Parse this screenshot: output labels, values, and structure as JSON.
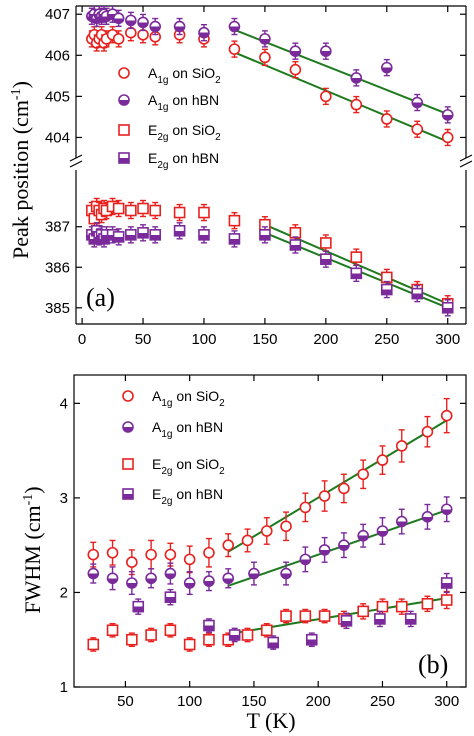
{
  "chart_data": [
    {
      "type": "scatter",
      "panel_label": "(a)",
      "ylabel": "Peak position (cm",
      "ylabel_sup": "-1",
      "ylabel_close": ")",
      "xlim": [
        -5,
        315
      ],
      "xticks": [
        "0",
        "50",
        "100",
        "150",
        "200",
        "250",
        "300"
      ],
      "y_axis_break": true,
      "upper_ylim": [
        403.5,
        407.2
      ],
      "upper_yticks": [
        "404",
        "405",
        "406",
        "407"
      ],
      "lower_ylim": [
        384.6,
        388.4
      ],
      "lower_yticks": [
        "385",
        "386",
        "387"
      ],
      "legend_position": "center-left",
      "series": [
        {
          "name": "A",
          "sub": "1g",
          "suffix": " on SiO",
          "sub2": "2",
          "marker": "circle",
          "fill": "open",
          "color": "#e8211f",
          "axis": "upper",
          "x": [
            8,
            10,
            12,
            14,
            16,
            18,
            20,
            25,
            30,
            40,
            50,
            60,
            80,
            100,
            125,
            150,
            175,
            200,
            225,
            250,
            275,
            300
          ],
          "y": [
            406.4,
            406.5,
            406.3,
            406.4,
            406.5,
            406.3,
            406.4,
            406.5,
            406.4,
            406.55,
            406.5,
            406.45,
            406.5,
            406.4,
            406.15,
            405.95,
            405.65,
            405.0,
            404.8,
            404.45,
            404.2,
            404.0
          ]
        },
        {
          "name": "A",
          "sub": "1g",
          "suffix": " on hBN",
          "marker": "circle",
          "fill": "half",
          "color": "#7a2a9a",
          "axis": "upper",
          "x": [
            8,
            10,
            12,
            14,
            16,
            18,
            20,
            25,
            30,
            40,
            50,
            60,
            80,
            100,
            125,
            150,
            175,
            200,
            225,
            250,
            275,
            300
          ],
          "y": [
            406.95,
            407.0,
            406.9,
            407.0,
            406.95,
            407.0,
            406.95,
            407.0,
            406.9,
            406.85,
            406.8,
            406.7,
            406.7,
            406.55,
            406.7,
            406.4,
            406.1,
            406.1,
            405.45,
            405.7,
            404.85,
            404.55
          ]
        },
        {
          "name": "E",
          "sub": "2g",
          "suffix": " on SiO",
          "sub2": "2",
          "marker": "square",
          "fill": "open",
          "color": "#e8211f",
          "axis": "lower",
          "x": [
            8,
            10,
            12,
            14,
            16,
            18,
            20,
            25,
            30,
            40,
            50,
            60,
            80,
            100,
            125,
            150,
            175,
            200,
            225,
            250,
            275,
            300
          ],
          "y": [
            387.4,
            387.2,
            387.5,
            387.4,
            387.3,
            387.45,
            387.4,
            387.5,
            387.45,
            387.4,
            387.45,
            387.4,
            387.35,
            387.35,
            387.15,
            387.05,
            386.85,
            386.6,
            386.25,
            385.75,
            385.45,
            385.1
          ]
        },
        {
          "name": "E",
          "sub": "2g",
          "suffix": " on hBN",
          "marker": "square",
          "fill": "half",
          "color": "#7a2a9a",
          "axis": "lower",
          "x": [
            8,
            10,
            12,
            14,
            16,
            18,
            20,
            25,
            30,
            40,
            50,
            60,
            80,
            100,
            125,
            150,
            175,
            200,
            225,
            250,
            275,
            300
          ],
          "y": [
            386.8,
            386.7,
            386.9,
            386.75,
            386.8,
            386.7,
            386.8,
            386.8,
            386.75,
            386.8,
            386.85,
            386.8,
            386.9,
            386.8,
            386.7,
            386.8,
            386.55,
            386.2,
            385.85,
            385.45,
            385.35,
            385.0
          ]
        }
      ],
      "fit_lines": [
        {
          "axis": "upper",
          "x": [
            125,
            300
          ],
          "y": [
            406.62,
            404.57
          ]
        },
        {
          "axis": "upper",
          "x": [
            125,
            300
          ],
          "y": [
            406.07,
            403.9
          ]
        },
        {
          "axis": "lower",
          "x": [
            150,
            300
          ],
          "y": [
            387.05,
            385.1
          ]
        },
        {
          "axis": "lower",
          "x": [
            150,
            300
          ],
          "y": [
            386.85,
            385.0
          ]
        }
      ],
      "fit_color": "#1e7a1e"
    },
    {
      "type": "scatter",
      "panel_label": "(b)",
      "xlabel": "T (K)",
      "ylabel": "FWHM (cm",
      "ylabel_sup": "-1",
      "ylabel_close": ")",
      "xlim": [
        10,
        315
      ],
      "ylim": [
        1.0,
        4.3
      ],
      "xticks": [
        "50",
        "100",
        "150",
        "200",
        "250",
        "300"
      ],
      "yticks": [
        "1",
        "2",
        "3",
        "4"
      ],
      "legend_position": "top-left",
      "series": [
        {
          "name": "A",
          "sub": "1g",
          "suffix": " on SiO",
          "sub2": "2",
          "marker": "circle",
          "fill": "open",
          "color": "#e8211f",
          "x": [
            25,
            40,
            55,
            70,
            85,
            100,
            115,
            130,
            145,
            160,
            175,
            190,
            205,
            220,
            235,
            250,
            265,
            285,
            300
          ],
          "y": [
            2.4,
            2.42,
            2.32,
            2.4,
            2.4,
            2.35,
            2.42,
            2.5,
            2.55,
            2.65,
            2.7,
            2.9,
            3.02,
            3.1,
            3.25,
            3.4,
            3.55,
            3.7,
            3.87
          ],
          "err": [
            0.13,
            0.13,
            0.13,
            0.15,
            0.12,
            0.14,
            0.15,
            0.12,
            0.12,
            0.14,
            0.15,
            0.15,
            0.16,
            0.15,
            0.15,
            0.15,
            0.17,
            0.16,
            0.18
          ]
        },
        {
          "name": "A",
          "sub": "1g",
          "suffix": " on hBN",
          "marker": "circle",
          "fill": "half",
          "color": "#7a2a9a",
          "x": [
            25,
            40,
            55,
            70,
            85,
            100,
            115,
            130,
            150,
            175,
            190,
            205,
            220,
            235,
            250,
            265,
            285,
            300
          ],
          "y": [
            2.2,
            2.15,
            2.1,
            2.15,
            2.2,
            2.1,
            2.12,
            2.15,
            2.2,
            2.2,
            2.35,
            2.45,
            2.5,
            2.6,
            2.65,
            2.75,
            2.8,
            2.88
          ],
          "err": [
            0.1,
            0.12,
            0.12,
            0.1,
            0.11,
            0.12,
            0.1,
            0.1,
            0.12,
            0.12,
            0.13,
            0.13,
            0.13,
            0.12,
            0.14,
            0.13,
            0.13,
            0.13
          ]
        },
        {
          "name": "E",
          "sub": "2g",
          "suffix": " on SiO",
          "sub2": "2",
          "marker": "square",
          "fill": "open",
          "color": "#e8211f",
          "x": [
            25,
            40,
            55,
            70,
            85,
            100,
            115,
            130,
            145,
            160,
            175,
            190,
            205,
            220,
            235,
            250,
            265,
            285,
            300
          ],
          "y": [
            1.45,
            1.6,
            1.5,
            1.55,
            1.6,
            1.45,
            1.5,
            1.5,
            1.55,
            1.6,
            1.75,
            1.75,
            1.75,
            1.72,
            1.8,
            1.85,
            1.85,
            1.88,
            1.92
          ],
          "err": [
            0.07,
            0.07,
            0.07,
            0.07,
            0.07,
            0.07,
            0.07,
            0.07,
            0.07,
            0.07,
            0.07,
            0.07,
            0.07,
            0.08,
            0.08,
            0.08,
            0.08,
            0.08,
            0.09
          ]
        },
        {
          "name": "E",
          "sub": "2g",
          "suffix": " on hBN",
          "marker": "square",
          "fill": "half",
          "color": "#7a2a9a",
          "x": [
            60,
            85,
            115,
            135,
            165,
            195,
            222,
            248,
            272,
            300
          ],
          "y": [
            1.85,
            1.95,
            1.65,
            1.55,
            1.47,
            1.5,
            1.7,
            1.72,
            1.72,
            2.1
          ],
          "err": [
            0.08,
            0.08,
            0.07,
            0.07,
            0.07,
            0.07,
            0.08,
            0.08,
            0.08,
            0.1
          ]
        }
      ],
      "fit_lines": [
        {
          "x": [
            130,
            300
          ],
          "y": [
            2.43,
            3.82
          ]
        },
        {
          "x": [
            130,
            300
          ],
          "y": [
            2.07,
            2.87
          ]
        },
        {
          "x": [
            130,
            300
          ],
          "y": [
            1.56,
            1.94
          ]
        }
      ],
      "fit_color": "#1e7a1e"
    }
  ]
}
